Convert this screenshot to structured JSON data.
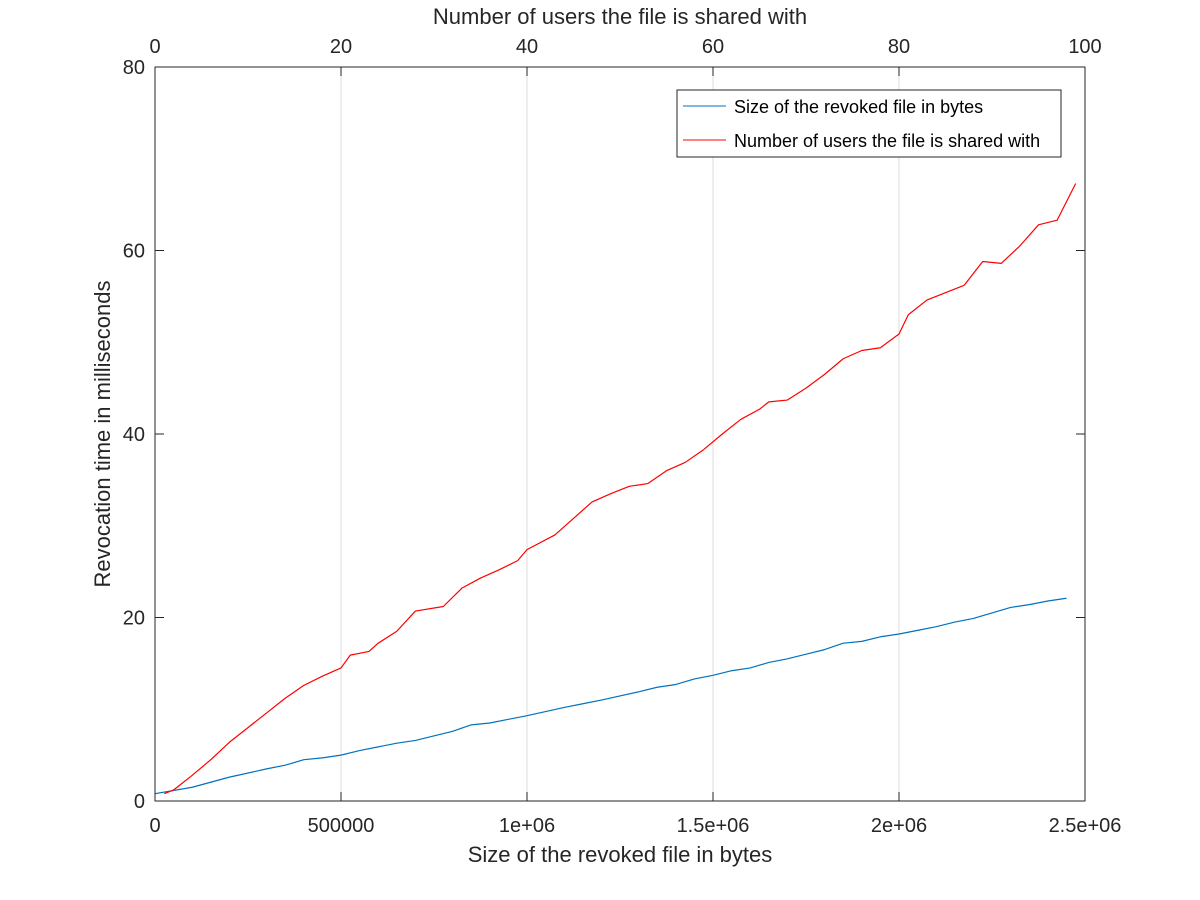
{
  "chart_data": {
    "type": "line",
    "xlabel": "Size of the revoked file in bytes",
    "ylabel": "Revocation time in milliseconds",
    "x2label": "Number of users the file is shared with",
    "xlim": [
      0,
      2500000
    ],
    "x2lim": [
      0,
      100
    ],
    "ylim": [
      0,
      80
    ],
    "grid": "vertical",
    "legend_position": "top-right",
    "x_ticks": [
      {
        "value": 0,
        "label": "0"
      },
      {
        "value": 500000,
        "label": "500000"
      },
      {
        "value": 1000000,
        "label": "1e+06"
      },
      {
        "value": 1500000,
        "label": "1.5e+06"
      },
      {
        "value": 2000000,
        "label": "2e+06"
      },
      {
        "value": 2500000,
        "label": "2.5e+06"
      }
    ],
    "x2_ticks": [
      {
        "value": 0,
        "label": "0"
      },
      {
        "value": 20,
        "label": "20"
      },
      {
        "value": 40,
        "label": "40"
      },
      {
        "value": 60,
        "label": "60"
      },
      {
        "value": 80,
        "label": "80"
      },
      {
        "value": 100,
        "label": "100"
      }
    ],
    "y_ticks": [
      {
        "value": 0,
        "label": "0"
      },
      {
        "value": 20,
        "label": "20"
      },
      {
        "value": 40,
        "label": "40"
      },
      {
        "value": 60,
        "label": "60"
      },
      {
        "value": 80,
        "label": "80"
      }
    ],
    "series": [
      {
        "name": "Size of the revoked file in bytes",
        "axis": "bottom",
        "color": "#0072bd",
        "x": [
          0,
          100000,
          200000,
          300000,
          350000,
          400000,
          450000,
          500000,
          550000,
          600000,
          650000,
          700000,
          800000,
          850000,
          900000,
          950000,
          1000000,
          1100000,
          1150000,
          1200000,
          1300000,
          1350000,
          1400000,
          1450000,
          1500000,
          1550000,
          1600000,
          1650000,
          1700000,
          1750000,
          1800000,
          1850000,
          1900000,
          1950000,
          2000000,
          2050000,
          2100000,
          2150000,
          2200000,
          2250000,
          2300000,
          2350000,
          2400000,
          2450000
        ],
        "y": [
          0.8,
          1.5,
          2.6,
          3.5,
          3.9,
          4.5,
          4.7,
          5.0,
          5.5,
          5.9,
          6.3,
          6.6,
          7.6,
          8.3,
          8.5,
          8.9,
          9.3,
          10.2,
          10.6,
          11.0,
          11.9,
          12.4,
          12.7,
          13.3,
          13.7,
          14.2,
          14.5,
          15.1,
          15.5,
          16.0,
          16.5,
          17.2,
          17.4,
          17.9,
          18.2,
          18.6,
          19.0,
          19.5,
          19.9,
          20.5,
          21.1,
          21.4,
          21.8,
          22.1
        ]
      },
      {
        "name": "Number of users the file is shared with",
        "axis": "top",
        "color": "#ff0000",
        "x": [
          1,
          2,
          4,
          6,
          8,
          10,
          12,
          14,
          16,
          18,
          20,
          21,
          22,
          23,
          24,
          26,
          28,
          31,
          33,
          35,
          37,
          39,
          40,
          43,
          45,
          47,
          49,
          51,
          53,
          55,
          57,
          59,
          61,
          63,
          65,
          66,
          68,
          70,
          72,
          74,
          76,
          78,
          80,
          81,
          83,
          85,
          87,
          89,
          91,
          93,
          95,
          97,
          99
        ],
        "y": [
          0.8,
          1.2,
          2.8,
          4.5,
          6.4,
          8.0,
          9.6,
          11.2,
          12.6,
          13.6,
          14.5,
          15.9,
          16.1,
          16.3,
          17.2,
          18.5,
          20.7,
          21.2,
          23.2,
          24.3,
          25.2,
          26.2,
          27.4,
          29.0,
          30.8,
          32.6,
          33.5,
          34.3,
          34.6,
          36.0,
          36.9,
          38.3,
          40.0,
          41.6,
          42.7,
          43.5,
          43.7,
          45.0,
          46.5,
          48.2,
          49.1,
          49.4,
          50.9,
          53.0,
          54.6,
          55.4,
          56.2,
          58.8,
          58.6,
          60.5,
          62.8,
          63.3,
          67.3
        ]
      }
    ]
  }
}
